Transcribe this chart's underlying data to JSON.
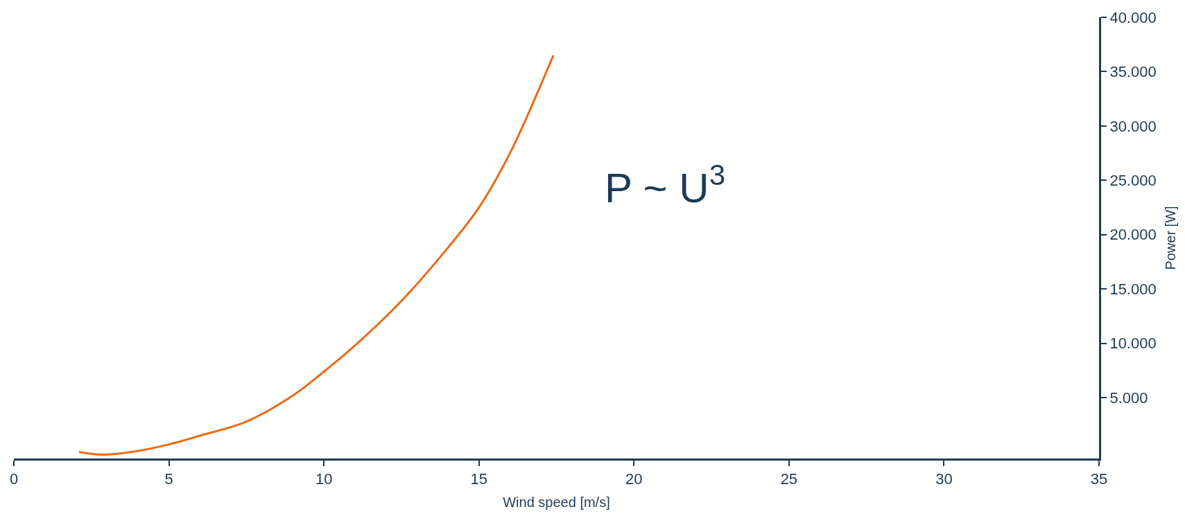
{
  "chart_data": {
    "type": "line",
    "xlabel": "Wind speed [m/s]",
    "ylabel": "Power [W]",
    "annotations": [
      "P ~ U$^{3}$"
    ],
    "x": [
      2.1,
      2.8,
      3.8,
      5,
      6,
      7.5,
      9,
      10,
      11,
      12.5,
      14,
      15,
      16,
      17.4
    ],
    "series": [
      {
        "color": "#ec6a12",
        "values": [
          0,
          -250,
          0,
          700,
          1500,
          2800,
          5200,
          7400,
          9800,
          13900,
          18800,
          22500,
          27500,
          36500
        ]
      }
    ],
    "xlim": [
      0,
      35
    ],
    "xticks": [
      0,
      5,
      10,
      15,
      20,
      25,
      30,
      35
    ],
    "ylim": [
      -600,
      40000
    ],
    "yticks": [
      {
        "value": 5000,
        "label": "5.000"
      },
      {
        "value": 10000,
        "label": "10.000"
      },
      {
        "value": 15000,
        "label": "15.000"
      },
      {
        "value": 20000,
        "label": "20.000"
      },
      {
        "value": 25000,
        "label": "25.000"
      },
      {
        "value": 30000,
        "label": "30.000"
      },
      {
        "value": 35000,
        "label": "35.000"
      },
      {
        "value": 40000,
        "label": "40.000"
      }
    ],
    "marker": "none",
    "line_style": "solid"
  }
}
